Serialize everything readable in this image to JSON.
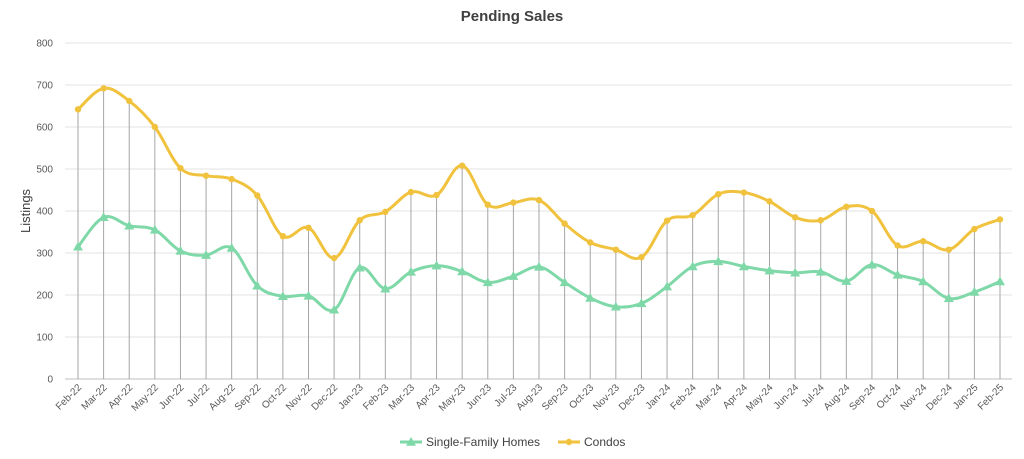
{
  "chart_data": {
    "type": "line",
    "title": "Pending Sales",
    "xlabel": "",
    "ylabel": "Listings",
    "ylim": [
      0,
      800
    ],
    "yticks": [
      0,
      100,
      200,
      300,
      400,
      500,
      600,
      700,
      800
    ],
    "grid": true,
    "legend_position": "bottom",
    "categories": [
      "Feb-22",
      "Mar-22",
      "Apr-22",
      "May-22",
      "Jun-22",
      "Jul-22",
      "Aug-22",
      "Sep-22",
      "Oct-22",
      "Nov-22",
      "Dec-22",
      "Jan-23",
      "Feb-23",
      "Mar-23",
      "Apr-23",
      "May-23",
      "Jun-23",
      "Jul-23",
      "Aug-23",
      "Sep-23",
      "Oct-23",
      "Nov-23",
      "Dec-23",
      "Jan-24",
      "Feb-24",
      "Mar-24",
      "Apr-24",
      "May-24",
      "Jun-24",
      "Jul-24",
      "Aug-24",
      "Sep-24",
      "Oct-24",
      "Nov-24",
      "Dec-24",
      "Jan-25",
      "Feb-25"
    ],
    "series": [
      {
        "name": "Single-Family Homes",
        "color": "#7fd8a8",
        "marker": "triangle",
        "values": [
          315,
          385,
          365,
          355,
          305,
          295,
          312,
          222,
          197,
          198,
          165,
          265,
          215,
          255,
          270,
          256,
          230,
          245,
          267,
          230,
          193,
          172,
          180,
          220,
          268,
          280,
          268,
          258,
          253,
          255,
          233,
          272,
          248,
          232,
          192,
          207,
          232
        ]
      },
      {
        "name": "Condos",
        "color": "#f0c23e",
        "marker": "circle",
        "values": [
          642,
          692,
          662,
          600,
          502,
          484,
          476,
          437,
          340,
          360,
          288,
          378,
          398,
          445,
          438,
          508,
          415,
          420,
          426,
          370,
          325,
          308,
          290,
          377,
          390,
          440,
          444,
          423,
          385,
          378,
          410,
          400,
          318,
          328,
          308,
          357,
          380
        ]
      }
    ],
    "drop_lines": true,
    "drop_line_color": "#a6a6a6"
  }
}
